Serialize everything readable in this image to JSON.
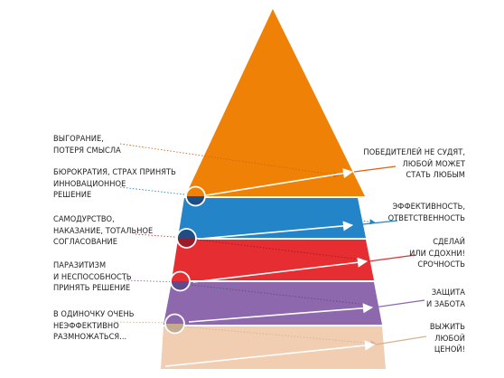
{
  "colors": {
    "orange": "#ef8206",
    "blue": "#2385c7",
    "red": "#e52d32",
    "purple": "#8d68ad",
    "beige": "#f1cdb2",
    "dark_blue": "#1f4e86",
    "dark_red": "#9c1b2b",
    "dark_purple": "#5f4a8c",
    "dark_beige": "#c3aa90",
    "orange_line": "#d9620e",
    "white": "#ffffff"
  },
  "left_labels": [
    "ВЫГОРАНИЕ,\nПОТЕРЯ СМЫСЛА",
    "БЮРОКРАТИЯ, СТРАХ ПРИНЯТЬ\nИННОВАЦИОННОЕ\nРЕШЕНИЕ",
    "САМОДУРСТВО,\nНАКАЗАНИЕ, ТОТАЛЬНОЕ\nСОГЛАСОВАНИЕ",
    "ПАРАЗИТИЗМ\nИ НЕСПОСОБНОСТЬ\nПРИНЯТЬ РЕШЕНИЕ",
    "В ОДИНОЧКУ ОЧЕНЬ\nНЕЭФФЕКТИВНО\nРАЗМНОЖАТЬСЯ..."
  ],
  "right_labels": [
    "ПОБЕДИТЕЛЕЙ НЕ СУДЯТ,\nЛЮБОЙ МОЖЕТ\nСТАТЬ ЛЮБЫМ",
    "ЭФФЕКТИВНОСТЬ,\nОТВЕТСТВЕННОСТЬ",
    "СДЕЛАЙ\nИЛИ СДОХНИ!\nСРОЧНОСТЬ",
    "ЗАЩИТА\nИ ЗАБОТА",
    "ВЫЖИТЬ\nЛЮБОЙ\nЦЕНОЙ!"
  ]
}
